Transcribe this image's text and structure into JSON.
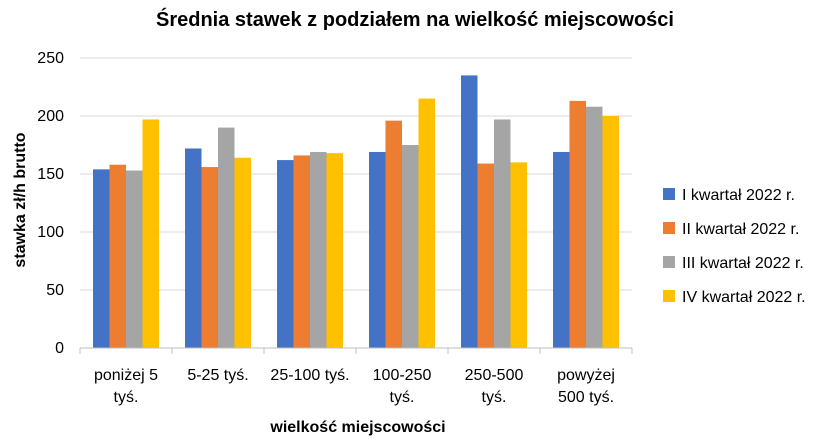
{
  "chart_data": {
    "type": "bar",
    "title": "Średnia stawek z podziałem na wielkość miejscowości",
    "xlabel": "wielkość miejscowości",
    "ylabel": "stawka zł/h brutto",
    "ylim": [
      0,
      250
    ],
    "yticks": [
      0,
      50,
      100,
      150,
      200,
      250
    ],
    "grid": true,
    "legend_position": "right",
    "categories": [
      [
        "poniżej 5",
        "tyś."
      ],
      [
        "5-25 tyś."
      ],
      [
        "25-100 tyś."
      ],
      [
        "100-250",
        "tyś."
      ],
      [
        "250-500",
        "tyś."
      ],
      [
        "powyżej",
        "500 tyś."
      ]
    ],
    "series": [
      {
        "name": "I kwartał 2022 r.",
        "color": "#4472C4",
        "values": [
          154,
          172,
          162,
          169,
          235,
          169
        ]
      },
      {
        "name": "II kwartał 2022 r.",
        "color": "#ED7D31",
        "values": [
          158,
          156,
          166,
          196,
          159,
          213
        ]
      },
      {
        "name": "III kwartał 2022 r.",
        "color": "#A5A5A5",
        "values": [
          153,
          190,
          169,
          175,
          197,
          208
        ]
      },
      {
        "name": "IV kwartał 2022 r.",
        "color": "#FFC000",
        "values": [
          197,
          164,
          168,
          215,
          160,
          200
        ]
      }
    ]
  }
}
